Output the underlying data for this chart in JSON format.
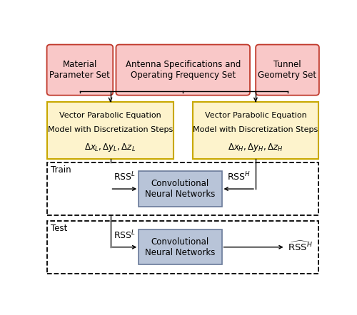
{
  "fig_width": 5.0,
  "fig_height": 4.42,
  "dpi": 100,
  "bg_color": "#ffffff",
  "pink_fill": "#f9c8c8",
  "pink_edge": "#c0392b",
  "yellow_fill": "#fdf3cc",
  "yellow_edge": "#c8a800",
  "blue_fill": "#b8c4d8",
  "blue_edge": "#6a7a9a",
  "box1_text": "Material\nParameter Set",
  "box2_text": "Antenna Specifications and\nOperating Frequency Set",
  "box3_text": "Tunnel\nGeometry Set",
  "cnn_text": "Convolutional\nNeural Networks",
  "train_label": "Train",
  "test_label": "Test"
}
